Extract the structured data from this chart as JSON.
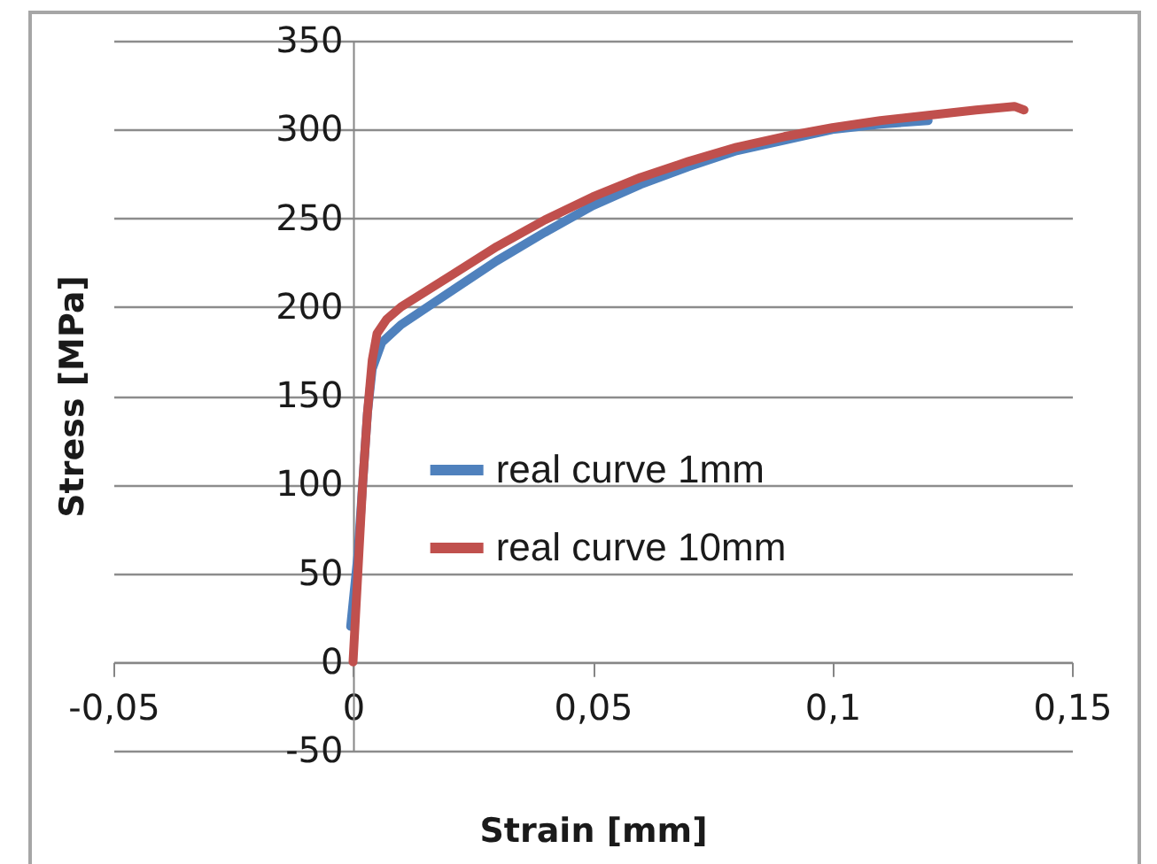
{
  "chart_data": {
    "type": "line",
    "xlabel": "Strain [mm]",
    "ylabel": "Stress [MPa]",
    "xlim": [
      -0.05,
      0.15
    ],
    "ylim": [
      -50,
      350
    ],
    "xticks": [
      {
        "value": -0.05,
        "label": "-0,05"
      },
      0,
      {
        "value": 0.05,
        "label": "0,05"
      },
      {
        "value": 0.1,
        "label": "0,1"
      },
      {
        "value": 0.15,
        "label": "0,15"
      }
    ],
    "yticks": [
      -50,
      0,
      50,
      100,
      150,
      200,
      250,
      300,
      350
    ],
    "grid": "y",
    "legend": "center",
    "line_style": "solid",
    "marker": "none",
    "series": [
      {
        "name": "real curve 1mm",
        "color": "#4f81bd",
        "x": [
          -0.0005,
          0.001,
          0.002,
          0.003,
          0.004,
          0.006,
          0.01,
          0.02,
          0.03,
          0.04,
          0.05,
          0.06,
          0.07,
          0.08,
          0.09,
          0.1,
          0.11,
          0.12
        ],
        "values": [
          20,
          60,
          100,
          140,
          165,
          180,
          190,
          208,
          226,
          242,
          257,
          269,
          279,
          288,
          294,
          300,
          303,
          305
        ]
      },
      {
        "name": "real curve 10mm",
        "color": "#c0504d",
        "x": [
          0,
          0.001,
          0.002,
          0.003,
          0.004,
          0.005,
          0.007,
          0.01,
          0.02,
          0.03,
          0.04,
          0.05,
          0.06,
          0.07,
          0.08,
          0.09,
          0.1,
          0.11,
          0.12,
          0.13,
          0.138,
          0.14
        ],
        "values": [
          0,
          50,
          100,
          140,
          170,
          185,
          193,
          200,
          217,
          234,
          249,
          262,
          273,
          282,
          290,
          296,
          301,
          305,
          308,
          311,
          313,
          311
        ]
      }
    ]
  }
}
